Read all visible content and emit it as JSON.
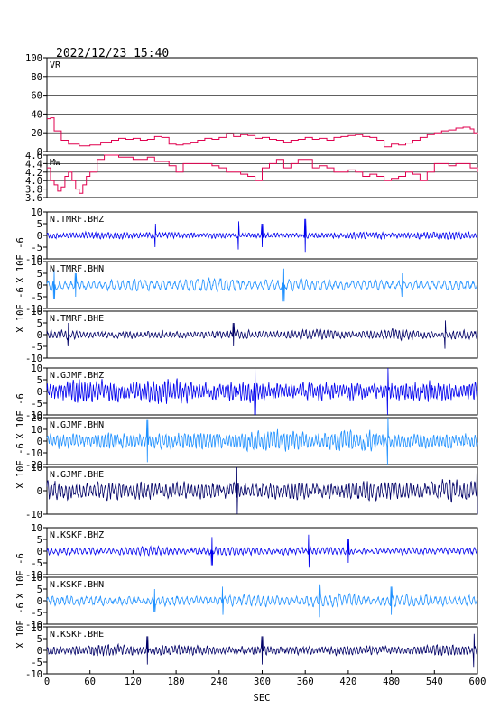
{
  "header": {
    "datetime": "2022/12/23  15:40"
  },
  "chart_data": {
    "type": "line",
    "xlabel": "SEC",
    "xlim": [
      0,
      600
    ],
    "xticks": [
      "0",
      "60",
      "120",
      "180",
      "240",
      "300",
      "360",
      "420",
      "480",
      "540",
      "600"
    ],
    "panels": [
      {
        "label": "VR",
        "kind": "stat",
        "color": "#e0004f",
        "ylim": [
          0,
          100
        ],
        "yticks": [
          "100",
          "80",
          "60",
          "40",
          "20",
          "0"
        ],
        "x": [
          0,
          5,
          10,
          20,
          30,
          45,
          60,
          75,
          90,
          100,
          110,
          120,
          130,
          140,
          150,
          160,
          170,
          180,
          190,
          200,
          210,
          220,
          230,
          240,
          250,
          260,
          270,
          280,
          290,
          300,
          310,
          320,
          330,
          340,
          350,
          360,
          370,
          380,
          390,
          400,
          410,
          420,
          430,
          440,
          450,
          460,
          470,
          480,
          490,
          500,
          510,
          520,
          530,
          540,
          550,
          560,
          570,
          580,
          590,
          595,
          600
        ],
        "y": [
          35,
          36,
          22,
          12,
          8,
          6,
          7,
          10,
          12,
          14,
          13,
          14,
          12,
          13,
          16,
          15,
          8,
          7,
          8,
          10,
          12,
          14,
          13,
          15,
          19,
          16,
          18,
          17,
          14,
          15,
          13,
          12,
          10,
          12,
          13,
          15,
          13,
          14,
          12,
          15,
          16,
          17,
          18,
          16,
          15,
          12,
          5,
          8,
          7,
          9,
          12,
          15,
          18,
          20,
          22,
          23,
          25,
          26,
          24,
          20,
          18
        ]
      },
      {
        "label": "Mw",
        "kind": "stat",
        "color": "#e0004f",
        "ylim": [
          3.6,
          4.6
        ],
        "yticks": [
          "4.6",
          "4.4",
          "4.2",
          "4.0",
          "3.8",
          "3.6"
        ],
        "x": [
          0,
          5,
          10,
          15,
          20,
          25,
          30,
          35,
          40,
          45,
          50,
          55,
          60,
          70,
          80,
          90,
          100,
          110,
          120,
          130,
          140,
          150,
          160,
          170,
          180,
          190,
          200,
          210,
          220,
          230,
          240,
          250,
          260,
          270,
          280,
          290,
          300,
          310,
          320,
          330,
          340,
          350,
          360,
          370,
          380,
          390,
          400,
          410,
          420,
          430,
          440,
          450,
          460,
          470,
          480,
          490,
          500,
          510,
          520,
          530,
          540,
          550,
          560,
          570,
          580,
          590,
          600
        ],
        "y": [
          4.3,
          4.0,
          3.9,
          3.75,
          3.85,
          4.1,
          4.2,
          4.0,
          3.8,
          3.7,
          3.9,
          4.1,
          4.2,
          4.5,
          4.6,
          4.6,
          4.55,
          4.55,
          4.5,
          4.5,
          4.55,
          4.45,
          4.45,
          4.35,
          4.2,
          4.4,
          4.4,
          4.4,
          4.4,
          4.35,
          4.3,
          4.2,
          4.2,
          4.15,
          4.1,
          4.0,
          4.3,
          4.4,
          4.5,
          4.3,
          4.4,
          4.5,
          4.5,
          4.3,
          4.35,
          4.3,
          4.2,
          4.2,
          4.25,
          4.2,
          4.1,
          4.15,
          4.1,
          4.0,
          4.05,
          4.1,
          4.2,
          4.15,
          4.0,
          4.2,
          4.4,
          4.4,
          4.35,
          4.4,
          4.4,
          4.3,
          4.2
        ]
      },
      {
        "label": "N.TMRF.BHZ",
        "kind": "wave",
        "color": "#0000ee",
        "ylim": [
          -10,
          10
        ],
        "yticks": [
          "10",
          "5",
          "0",
          "-5",
          "-10"
        ],
        "amp": 2.0,
        "freq": 0.45,
        "spikes": [
          [
            151,
            5
          ],
          [
            267,
            6
          ],
          [
            360,
            7
          ],
          [
            300,
            5
          ]
        ]
      },
      {
        "label": "N.TMRF.BHN",
        "kind": "wave",
        "color": "#1e90ff",
        "ylim": [
          -10,
          10
        ],
        "yticks": [
          "10",
          "5",
          "0",
          "-5",
          "-10"
        ],
        "amp": 3.0,
        "freq": 0.25,
        "spikes": [
          [
            10,
            6
          ],
          [
            40,
            5
          ],
          [
            330,
            7
          ],
          [
            495,
            5
          ]
        ]
      },
      {
        "label": "N.TMRF.BHE",
        "kind": "wave",
        "color": "#000066",
        "ylim": [
          -10,
          10
        ],
        "yticks": [
          "10",
          "5",
          "0",
          "-5",
          "-10"
        ],
        "amp": 2.5,
        "freq": 0.4,
        "spikes": [
          [
            30,
            5
          ],
          [
            260,
            5
          ],
          [
            555,
            6
          ]
        ]
      },
      {
        "label": "N.GJMF.BHZ",
        "kind": "wave",
        "color": "#0000ee",
        "ylim": [
          -10,
          10
        ],
        "yticks": [
          "10",
          "5",
          "0",
          "-5",
          "-10"
        ],
        "amp": 6.5,
        "freq": 0.5,
        "spikes": [
          [
            290,
            12
          ],
          [
            475,
            11
          ]
        ]
      },
      {
        "label": "N.GJMF.BHN",
        "kind": "wave",
        "color": "#1e90ff",
        "ylim": [
          -20,
          20
        ],
        "yticks": [
          "20",
          "10",
          "0",
          "-10",
          "-20"
        ],
        "amp": 11,
        "freq": 0.45,
        "spikes": [
          [
            140,
            18
          ],
          [
            475,
            20
          ]
        ]
      },
      {
        "label": "N.GJMF.BHE",
        "kind": "wave",
        "color": "#000066",
        "ylim": [
          -10,
          10
        ],
        "yticks": [
          "10",
          "0",
          "-10"
        ],
        "amp": 5.5,
        "freq": 0.4,
        "spikes": [
          [
            265,
            10
          ],
          [
            600,
            10
          ]
        ]
      },
      {
        "label": "N.KSKF.BHZ",
        "kind": "wave",
        "color": "#0000ee",
        "ylim": [
          -10,
          10
        ],
        "yticks": [
          "10",
          "5",
          "0",
          "-5",
          "-10"
        ],
        "amp": 2.2,
        "freq": 0.35,
        "spikes": [
          [
            230,
            6
          ],
          [
            365,
            7
          ],
          [
            420,
            5
          ]
        ]
      },
      {
        "label": "N.KSKF.BHN",
        "kind": "wave",
        "color": "#1e90ff",
        "ylim": [
          -10,
          10
        ],
        "yticks": [
          "10",
          "5",
          "0",
          "-5",
          "-10"
        ],
        "amp": 3.0,
        "freq": 0.3,
        "spikes": [
          [
            150,
            5
          ],
          [
            245,
            6
          ],
          [
            380,
            7
          ],
          [
            480,
            6
          ]
        ]
      },
      {
        "label": "N.KSKF.BHE",
        "kind": "wave",
        "color": "#000066",
        "ylim": [
          -10,
          10
        ],
        "yticks": [
          "10",
          "5",
          "0",
          "-5",
          "-10"
        ],
        "amp": 3.0,
        "freq": 0.45,
        "spikes": [
          [
            140,
            6
          ],
          [
            300,
            6
          ],
          [
            595,
            7
          ]
        ]
      }
    ],
    "ylabels": [
      {
        "text": "X 10E -6",
        "panels": [
          2,
          3
        ]
      },
      {
        "text": "X 10E -6",
        "panels": [
          3,
          4
        ]
      },
      {
        "text": "X 10E -6",
        "panels": [
          5,
          6
        ]
      },
      {
        "text": "X 10E -6",
        "panels": [
          6,
          7
        ]
      },
      {
        "text": "X 10E -6",
        "panels": [
          8,
          9
        ]
      },
      {
        "text": "X 10E -6",
        "panels": [
          9,
          10
        ]
      }
    ]
  }
}
